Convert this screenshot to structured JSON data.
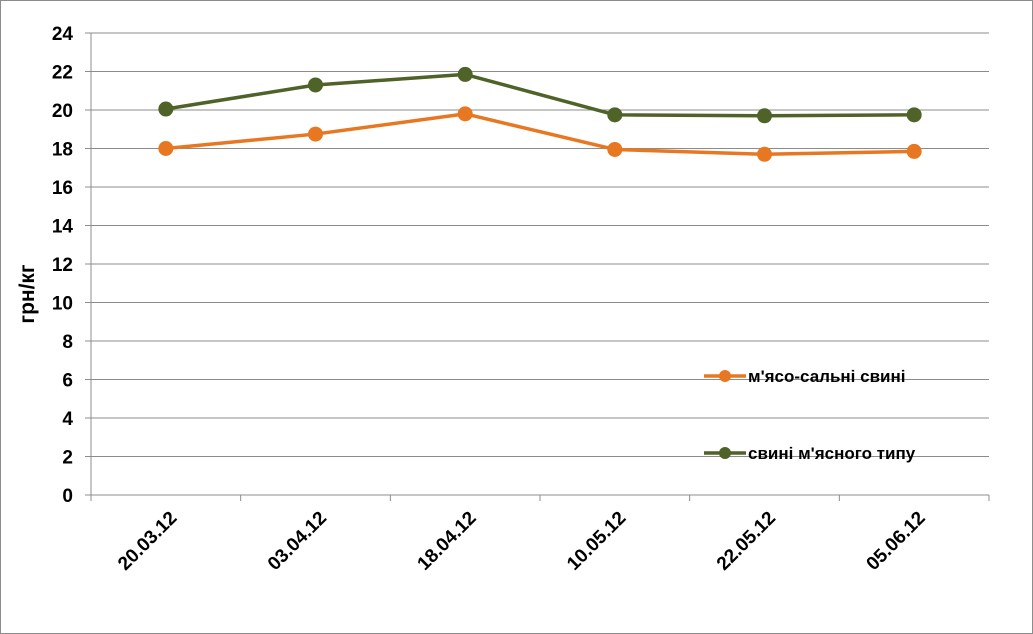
{
  "chart_data": {
    "type": "line",
    "title": "",
    "xlabel": "",
    "ylabel": "грн/кг",
    "categories": [
      "20.03.12",
      "03.04.12",
      "18.04.12",
      "10.05.12",
      "22.05.12",
      "05.06.12"
    ],
    "ylim": [
      0,
      24
    ],
    "yticks": [
      0,
      2,
      4,
      6,
      8,
      10,
      12,
      14,
      16,
      18,
      20,
      22,
      24
    ],
    "grid": true,
    "legend_position": "right",
    "series": [
      {
        "name": "м'ясо-сальні свині",
        "color": "#E87722",
        "values": [
          18.0,
          18.75,
          19.8,
          17.95,
          17.7,
          17.85
        ]
      },
      {
        "name": "свині м'ясного типу",
        "color": "#4F6228",
        "values": [
          20.05,
          21.3,
          21.85,
          19.75,
          19.7,
          19.75
        ]
      }
    ]
  }
}
